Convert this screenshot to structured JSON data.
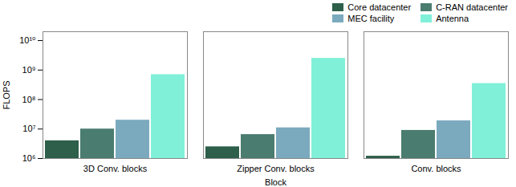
{
  "chart_data": {
    "type": "bar",
    "categories": [
      "3D Conv. blocks",
      "Zipper Conv. blocks",
      "Conv. blocks"
    ],
    "series": [
      {
        "name": "Core datacenter",
        "color": "#2d5f4a",
        "values": [
          4000000,
          2500000,
          1200000
        ]
      },
      {
        "name": "C-RAN datacenter",
        "color": "#4a7c6f",
        "values": [
          10000000,
          6500000,
          9000000
        ]
      },
      {
        "name": "MEC facility",
        "color": "#7baabf",
        "values": [
          20000000,
          11000000,
          19000000
        ]
      },
      {
        "name": "Antenna",
        "color": "#80f0d8",
        "values": [
          700000000,
          2500000000,
          350000000
        ]
      }
    ],
    "xlabel": "Block",
    "ylabel": "FLOPS",
    "log": "y",
    "ylim": [
      1000000,
      20000000000
    ],
    "yticks": [
      {
        "value": 1000000,
        "label": "10⁶"
      },
      {
        "value": 10000000,
        "label": "10⁷"
      },
      {
        "value": 100000000,
        "label": "10⁸"
      },
      {
        "value": 1000000000,
        "label": "10⁹"
      },
      {
        "value": 10000000000,
        "label": "10¹⁰"
      }
    ],
    "legend": "upper right",
    "grid": false
  }
}
